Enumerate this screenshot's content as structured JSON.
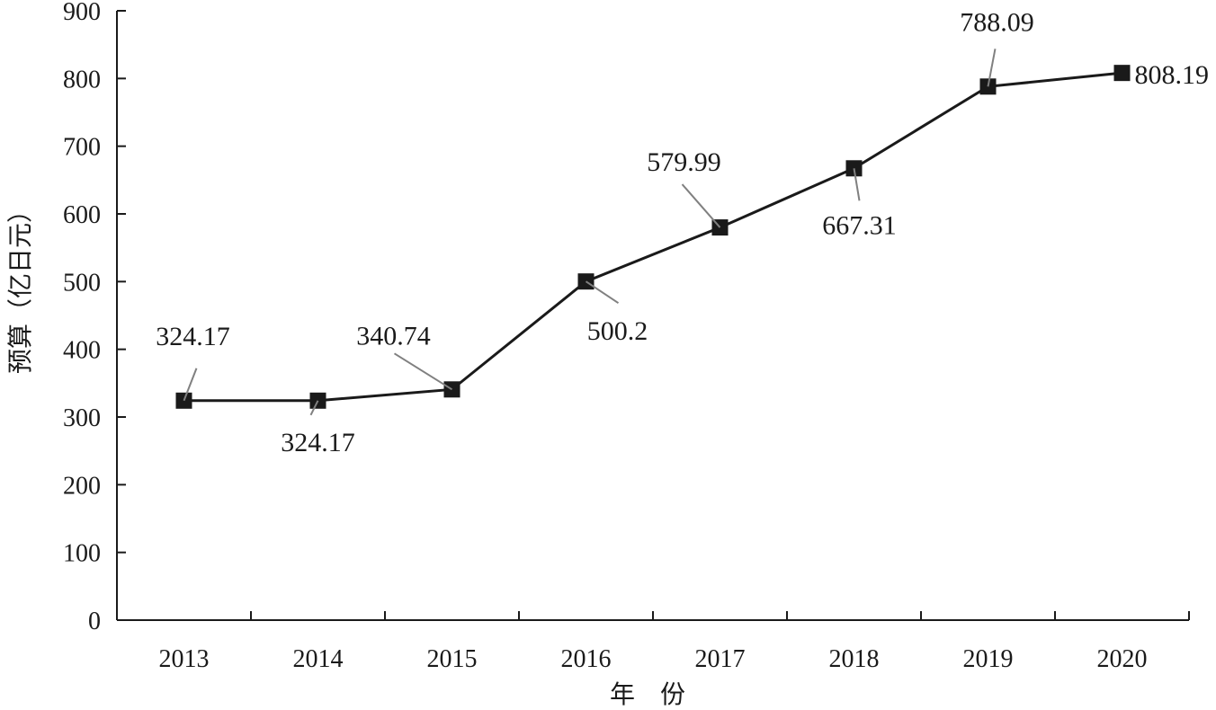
{
  "chart_data": {
    "type": "line",
    "title": "",
    "xlabel": "年　份",
    "ylabel": "预算（亿日元）",
    "categories": [
      "2013",
      "2014",
      "2015",
      "2016",
      "2017",
      "2018",
      "2019",
      "2020"
    ],
    "series": [
      {
        "values": [
          324.17,
          324.17,
          340.74,
          500.2,
          579.99,
          667.31,
          788.09,
          808.19
        ],
        "labels": [
          "324.17",
          "324.17",
          "340.74",
          "500.2",
          "579.99",
          "667.31",
          "788.09",
          "808.19"
        ],
        "marker": "square",
        "color": "#1a1a1a"
      }
    ],
    "ylim": [
      0,
      900
    ],
    "yticks": [
      "0",
      "100",
      "200",
      "300",
      "400",
      "500",
      "600",
      "700",
      "800",
      "900"
    ],
    "grid": false,
    "legend": "none"
  }
}
